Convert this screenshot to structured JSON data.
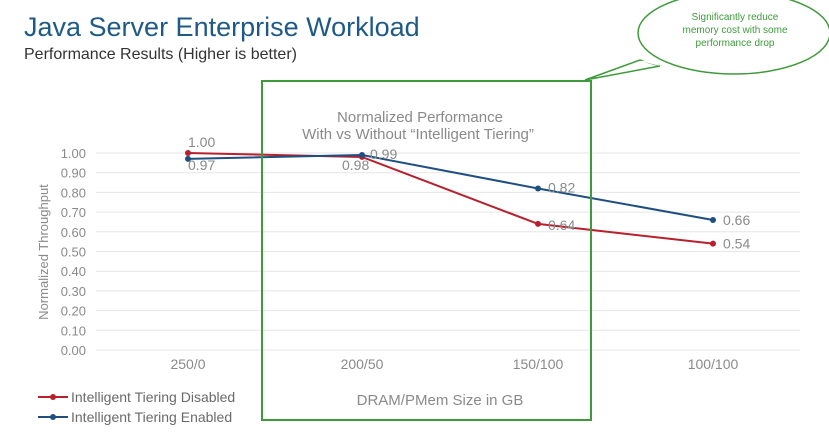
{
  "slide": {
    "title": "Java Server Enterprise Workload",
    "subtitle": "Performance Results (Higher is better)"
  },
  "callout": {
    "lines": [
      "Significantly reduce",
      "memory cost with some",
      "performance drop"
    ]
  },
  "highlight": {
    "lines": [
      "Normalized Performance",
      "With vs Without “Intelligent Tiering”"
    ]
  },
  "colors": {
    "disabled": "#b8202e",
    "enabled": "#1e4f80",
    "highlight_box": "#3f9a3c",
    "title": "#1f5a86",
    "axis_text": "#8a8a8a",
    "grid": "#e6e6e6"
  },
  "chart_data": {
    "type": "line",
    "title": "Normalized Performance With vs Without “Intelligent Tiering”",
    "xlabel": "DRAM/PMem Size in GB",
    "ylabel": "Normalized Throughput",
    "categories": [
      "250/0",
      "200/50",
      "150/100",
      "100/100"
    ],
    "ylim": [
      0,
      1.0
    ],
    "yticks": [
      "0.00",
      "0.10",
      "0.20",
      "0.30",
      "0.40",
      "0.50",
      "0.60",
      "0.70",
      "0.80",
      "0.90",
      "1.00"
    ],
    "grid": true,
    "legend_position": "bottom-left",
    "series": [
      {
        "name": "Intelligent Tiering Disabled",
        "values": [
          1.0,
          0.98,
          0.64,
          0.54
        ],
        "labels": [
          "1.00",
          "0.98",
          "0.64",
          "0.54"
        ],
        "color": "#b8202e"
      },
      {
        "name": "Intelligent Tiering  Enabled",
        "values": [
          0.97,
          0.99,
          0.82,
          0.66
        ],
        "labels": [
          "0.97",
          "0.99",
          "0.82",
          "0.66"
        ],
        "color": "#1e4f80"
      }
    ]
  }
}
